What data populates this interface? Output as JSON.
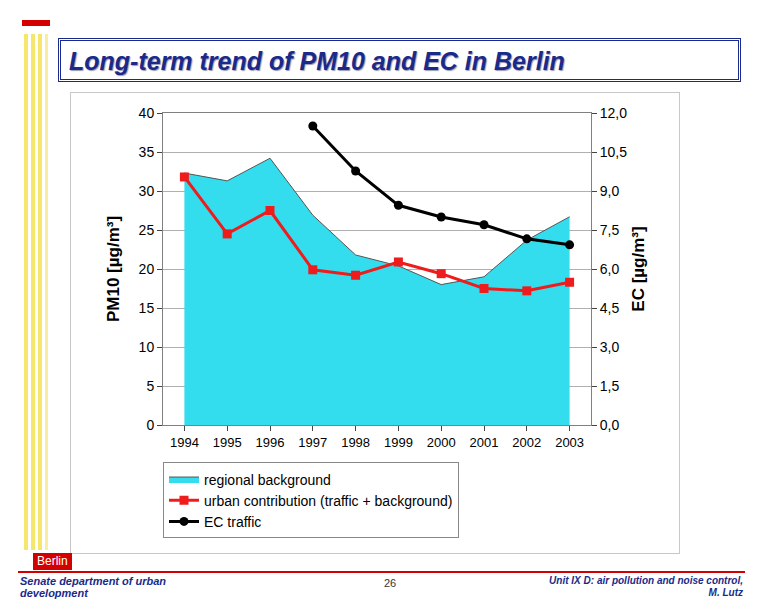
{
  "slide": {
    "title": "Long-term trend of PM10 and EC in Berlin",
    "logo": "Berlin",
    "footer_left": "Senate department of urban development",
    "page": "26",
    "footer_right": [
      "Unit IX D: air pollution and noise control,",
      "M. Lutz"
    ]
  },
  "chart_data": {
    "type": "line",
    "x": [
      1994,
      1995,
      1996,
      1997,
      1998,
      1999,
      2000,
      2001,
      2002,
      2003
    ],
    "xlim": [
      1993.5,
      2003.5
    ],
    "xticks": [
      1994,
      1995,
      1996,
      1997,
      1998,
      1999,
      2000,
      2001,
      2002,
      2003
    ],
    "y_label": "PM10 [µg/m³]",
    "y2_label": "EC [µg/m³]",
    "ylim": [
      0,
      40
    ],
    "yticks": [
      0,
      5,
      10,
      15,
      20,
      25,
      30,
      35,
      40
    ],
    "y2lim": [
      0,
      12
    ],
    "y2ticks": [
      {
        "value": 0,
        "label": "0,0"
      },
      {
        "value": 1.5,
        "label": "1,5"
      },
      {
        "value": 3,
        "label": "3,0"
      },
      {
        "value": 4.5,
        "label": "4,5"
      },
      {
        "value": 6,
        "label": "6,0"
      },
      {
        "value": 7.5,
        "label": "7,5"
      },
      {
        "value": 9,
        "label": "9,0"
      },
      {
        "value": 10.5,
        "label": "10,5"
      },
      {
        "value": 12,
        "label": "12,0"
      }
    ],
    "grid": true,
    "legend": "lower left",
    "series": [
      {
        "name": "regional background",
        "type": "area",
        "color": "#33ddee",
        "values": [
          32.3,
          31.3,
          34.2,
          26.9,
          21.8,
          20.4,
          18.0,
          19.0,
          23.7,
          26.7
        ]
      },
      {
        "name": "urban contribution (traffic + background)",
        "type": "line",
        "color": "#ee1c1c",
        "marker": "square",
        "values": [
          31.8,
          24.5,
          27.5,
          19.9,
          19.2,
          20.9,
          19.4,
          17.5,
          17.2,
          18.3
        ]
      },
      {
        "name": "EC traffic",
        "type": "line",
        "color": "#000000",
        "marker": "circle",
        "axis": "y2",
        "values": [
          null,
          null,
          null,
          11.5,
          9.77,
          8.45,
          8.0,
          7.7,
          7.16,
          6.93
        ]
      }
    ]
  }
}
